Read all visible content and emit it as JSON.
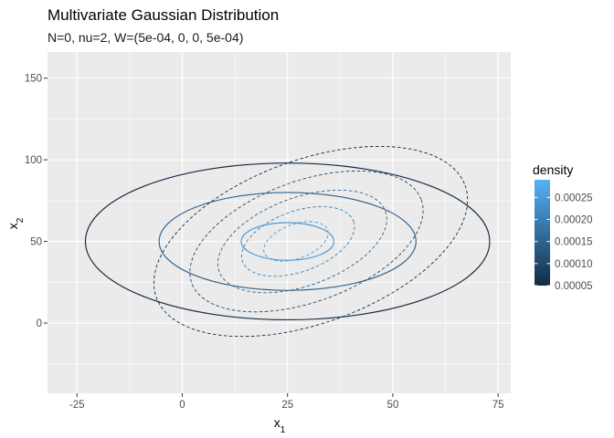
{
  "chart_data": {
    "type": "contour",
    "title": "Multivariate Gaussian Distribution",
    "subtitle": "N=0, nu=2, W=(5e-04, 0, 0, 5e-04)",
    "xlabel": {
      "base": "x",
      "sub": "1"
    },
    "ylabel": {
      "base": "x",
      "sub": "2"
    },
    "xlim": [
      -32,
      78
    ],
    "ylim": [
      -43,
      166
    ],
    "x_ticks": [
      -25,
      0,
      25,
      50,
      75
    ],
    "y_ticks": [
      0,
      50,
      100,
      150
    ],
    "x_tick_labels": [
      "-25",
      "0",
      "25",
      "50",
      "75"
    ],
    "y_tick_labels": [
      "0",
      "50",
      "100",
      "150"
    ],
    "panel_background": "#ebebeb",
    "grid_color": "#ffffff",
    "grid": true,
    "series": [
      {
        "line_style": "solid",
        "ellipses": [
          {
            "cx": 25,
            "cy": 50,
            "rx": 48,
            "ry": 48,
            "angle": 0,
            "density": 5e-05
          },
          {
            "cx": 25,
            "cy": 50,
            "rx": 30.5,
            "ry": 30,
            "angle": 0,
            "density": 0.00015
          },
          {
            "cx": 25,
            "cy": 50,
            "rx": 11,
            "ry": 11.5,
            "angle": 0,
            "density": 0.00025
          }
        ]
      },
      {
        "line_style": "dashed",
        "ellipses": [
          {
            "cx": 30.5,
            "cy": 50,
            "rx": 39,
            "ry": 50,
            "angle": 20,
            "density": 5e-05
          },
          {
            "cx": 29.5,
            "cy": 50,
            "rx": 29,
            "ry": 37,
            "angle": 20,
            "density": 0.0001
          },
          {
            "cx": 28.5,
            "cy": 50,
            "rx": 21,
            "ry": 27,
            "angle": 20,
            "density": 0.00015
          },
          {
            "cx": 27.5,
            "cy": 50,
            "rx": 14,
            "ry": 18.5,
            "angle": 20,
            "density": 0.0002
          },
          {
            "cx": 27,
            "cy": 50,
            "rx": 8,
            "ry": 10.5,
            "angle": 20,
            "density": 0.00025
          }
        ]
      }
    ],
    "legend": {
      "title": "density",
      "position": "right",
      "min": 5e-05,
      "max": 0.00029,
      "ticks": [
        5e-05,
        0.0001,
        0.00015,
        0.0002,
        0.00025
      ],
      "tick_labels": [
        "0.00005",
        "0.00010",
        "0.00015",
        "0.00020",
        "0.00025"
      ],
      "color_low": "#132b43",
      "color_high": "#56b1f7"
    }
  }
}
